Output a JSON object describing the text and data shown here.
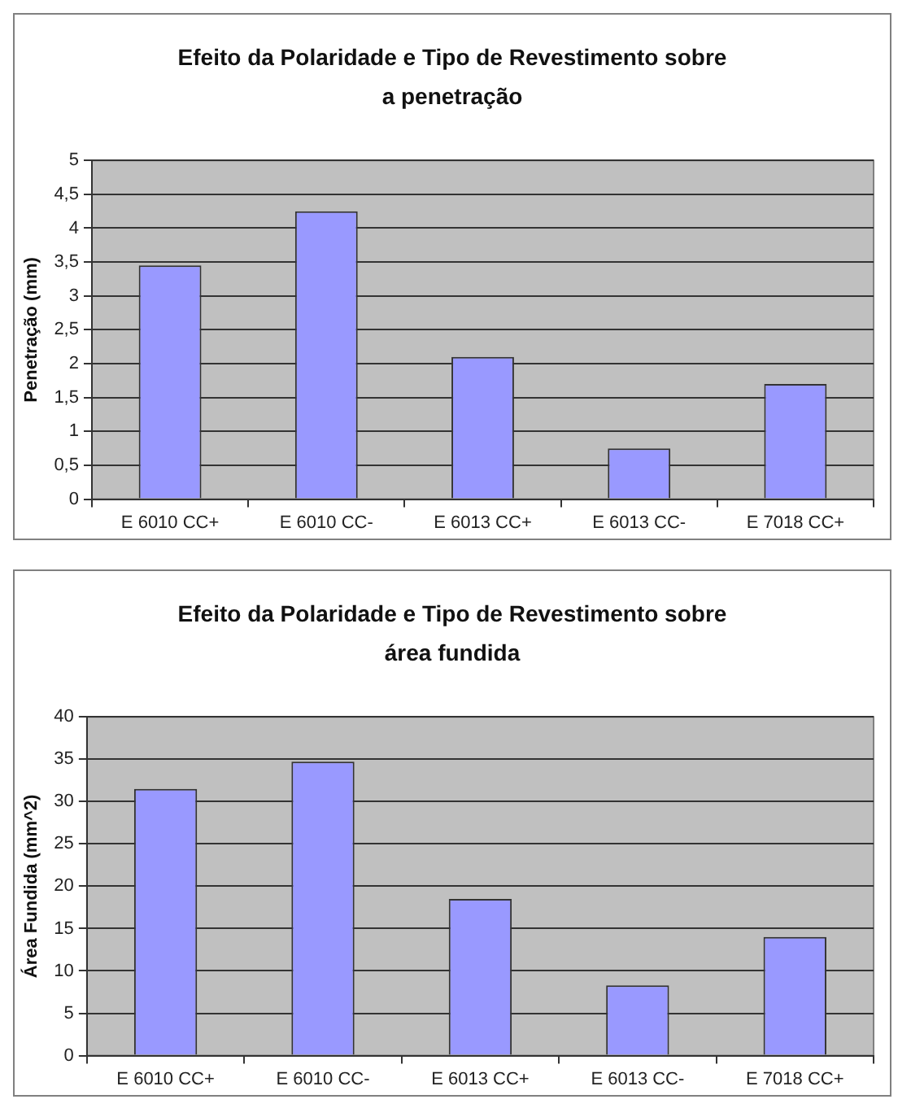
{
  "chart_data": [
    {
      "type": "bar",
      "title": "Efeito da Polaridade e Tipo de Revestimento sobre a penetração",
      "ylabel": "Penetração (mm)",
      "categories": [
        "E 6010 CC+",
        "E 6010 CC-",
        "E 6013 CC+",
        "E 6013 CC-",
        "E 7018 CC+"
      ],
      "values": [
        3.45,
        4.25,
        2.1,
        0.75,
        1.7
      ],
      "color": "#9999ff",
      "ylim": [
        0,
        5
      ],
      "yticks": [
        0,
        {
          "value": 0.5,
          "label": "0,5"
        },
        1,
        {
          "value": 1.5,
          "label": "1,5"
        },
        2,
        {
          "value": 2.5,
          "label": "2,5"
        },
        3,
        {
          "value": 3.5,
          "label": "3,5"
        },
        4,
        {
          "value": 4.5,
          "label": "4,5"
        },
        5
      ],
      "grid": "y",
      "legend": false
    },
    {
      "type": "bar",
      "title": "Efeito da Polaridade e Tipo de Revestimento sobre área fundida",
      "ylabel": "Área Fundida (mm^2)",
      "categories": [
        "E 6010 CC+",
        "E 6010 CC-",
        "E 6013 CC+",
        "E 6013 CC-",
        "E 7018 CC+"
      ],
      "values": [
        31.5,
        34.7,
        18.5,
        8.3,
        14
      ],
      "color": "#9999ff",
      "ylim": [
        0,
        40
      ],
      "yticks": [
        0,
        5,
        10,
        15,
        20,
        25,
        30,
        35,
        40
      ],
      "grid": "y",
      "legend": false
    }
  ]
}
